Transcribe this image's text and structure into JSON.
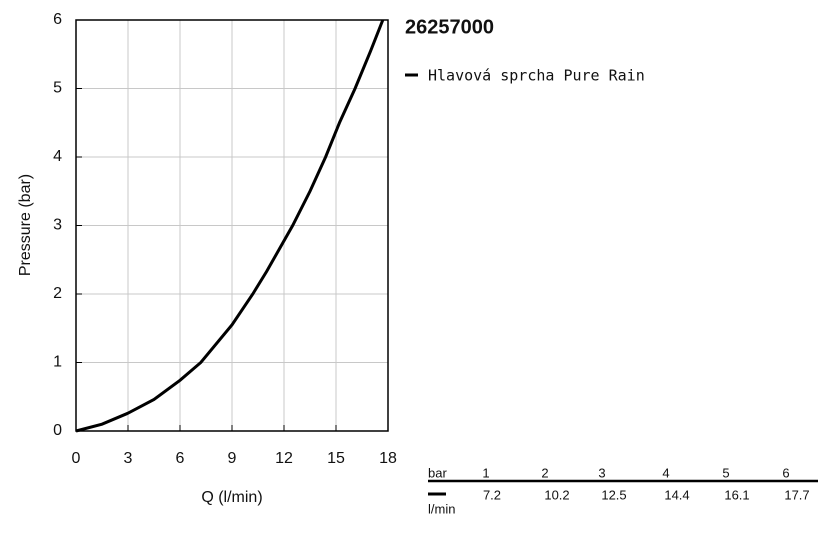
{
  "chart_data": {
    "type": "line",
    "title": "26257000",
    "x_label": "Q (l/min)",
    "y_label": "Pressure (bar)",
    "x": [
      0,
      1.5,
      3,
      4.5,
      6,
      7.2,
      9,
      10.2,
      11,
      12.5,
      13.5,
      14.4,
      15.2,
      16.1,
      17,
      17.7
    ],
    "series": [
      {
        "name": "Hlavová sprcha Pure Rain",
        "color": "#000000",
        "values": [
          0,
          0.1,
          0.26,
          0.46,
          0.74,
          1,
          1.55,
          2,
          2.33,
          3,
          3.5,
          4,
          4.5,
          5,
          5.55,
          6
        ]
      }
    ],
    "xlim": [
      0,
      18
    ],
    "ylim": [
      0,
      6
    ],
    "xticks": [
      0,
      3,
      6,
      9,
      12,
      15,
      18
    ],
    "yticks": [
      0,
      1,
      2,
      3,
      4,
      5,
      6
    ],
    "grid": true,
    "table": {
      "header_label": "bar",
      "header": [
        1,
        2,
        3,
        4,
        5,
        6
      ],
      "row_label": "l/min",
      "row": [
        7.2,
        10.2,
        12.5,
        14.4,
        16.1,
        17.7
      ]
    }
  }
}
